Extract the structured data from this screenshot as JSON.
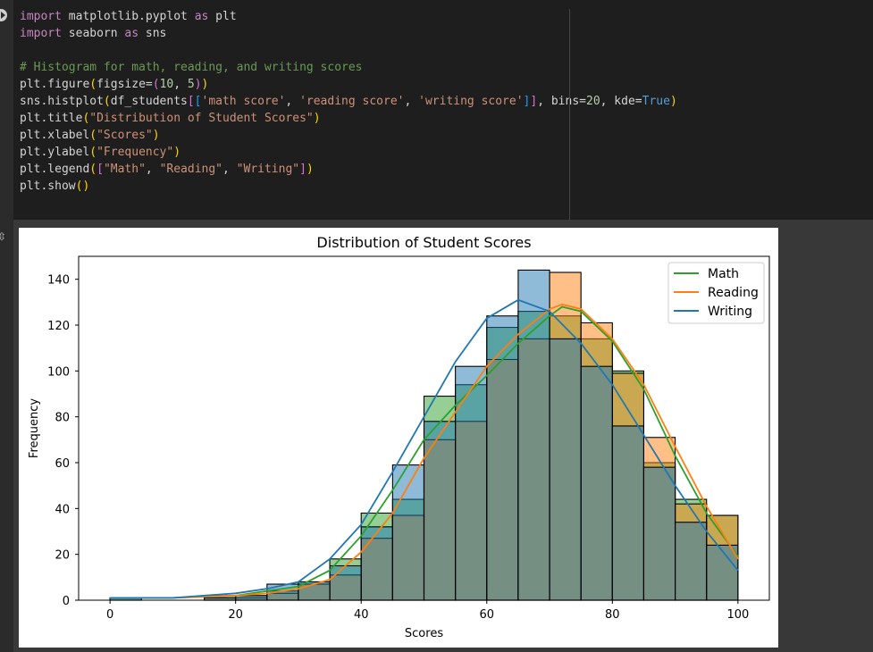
{
  "code_cell": {
    "lines": [
      [
        {
          "t": "import",
          "c": "kw"
        },
        {
          "t": " matplotlib.pyplot ",
          "c": ""
        },
        {
          "t": "as",
          "c": "kw"
        },
        {
          "t": " plt",
          "c": ""
        }
      ],
      [
        {
          "t": "import",
          "c": "kw"
        },
        {
          "t": " seaborn ",
          "c": ""
        },
        {
          "t": "as",
          "c": "kw"
        },
        {
          "t": " sns",
          "c": ""
        }
      ],
      [],
      [
        {
          "t": "# Histogram for math, reading, and writing scores",
          "c": "cm"
        }
      ],
      [
        {
          "t": "plt.figure",
          "c": ""
        },
        {
          "t": "(",
          "c": "br"
        },
        {
          "t": "figsize=",
          "c": ""
        },
        {
          "t": "(",
          "c": "br2"
        },
        {
          "t": "10",
          "c": "nm"
        },
        {
          "t": ", ",
          "c": ""
        },
        {
          "t": "5",
          "c": "nm"
        },
        {
          "t": ")",
          "c": "br2"
        },
        {
          "t": ")",
          "c": "br"
        }
      ],
      [
        {
          "t": "sns.histplot",
          "c": ""
        },
        {
          "t": "(",
          "c": "br"
        },
        {
          "t": "df_students",
          "c": ""
        },
        {
          "t": "[",
          "c": "br2"
        },
        {
          "t": "[",
          "c": "br3"
        },
        {
          "t": "'math score'",
          "c": "st"
        },
        {
          "t": ", ",
          "c": ""
        },
        {
          "t": "'reading score'",
          "c": "st"
        },
        {
          "t": ", ",
          "c": ""
        },
        {
          "t": "'writing score'",
          "c": "st"
        },
        {
          "t": "]",
          "c": "br3"
        },
        {
          "t": "]",
          "c": "br2"
        },
        {
          "t": ", bins=",
          "c": ""
        },
        {
          "t": "20",
          "c": "nm"
        },
        {
          "t": ", kde=",
          "c": ""
        },
        {
          "t": "True",
          "c": "bl"
        },
        {
          "t": ")",
          "c": "br"
        }
      ],
      [
        {
          "t": "plt.title",
          "c": ""
        },
        {
          "t": "(",
          "c": "br"
        },
        {
          "t": "\"Distribution of Student Scores\"",
          "c": "st"
        },
        {
          "t": ")",
          "c": "br"
        }
      ],
      [
        {
          "t": "plt.xlabel",
          "c": ""
        },
        {
          "t": "(",
          "c": "br"
        },
        {
          "t": "\"Scores\"",
          "c": "st"
        },
        {
          "t": ")",
          "c": "br"
        }
      ],
      [
        {
          "t": "plt.ylabel",
          "c": ""
        },
        {
          "t": "(",
          "c": "br"
        },
        {
          "t": "\"Frequency\"",
          "c": "st"
        },
        {
          "t": ")",
          "c": "br"
        }
      ],
      [
        {
          "t": "plt.legend",
          "c": ""
        },
        {
          "t": "(",
          "c": "br"
        },
        {
          "t": "[",
          "c": "br2"
        },
        {
          "t": "\"Math\"",
          "c": "st"
        },
        {
          "t": ", ",
          "c": ""
        },
        {
          "t": "\"Reading\"",
          "c": "st"
        },
        {
          "t": ", ",
          "c": ""
        },
        {
          "t": "\"Writing\"",
          "c": "st"
        },
        {
          "t": "]",
          "c": "br2"
        },
        {
          "t": ")",
          "c": "br"
        }
      ],
      [
        {
          "t": "plt.show",
          "c": ""
        },
        {
          "t": "(",
          "c": "br"
        },
        {
          "t": ")",
          "c": "br"
        }
      ]
    ]
  },
  "chart_data": {
    "type": "bar",
    "title": "Distribution of Student Scores",
    "xlabel": "Scores",
    "ylabel": "Frequency",
    "xlim": [
      -5,
      105
    ],
    "ylim": [
      0,
      150
    ],
    "xticks": [
      0,
      20,
      40,
      60,
      80,
      100
    ],
    "yticks": [
      0,
      20,
      40,
      60,
      80,
      100,
      120,
      140
    ],
    "grid": false,
    "legend_position": "top-right",
    "bin_edges": [
      0,
      5,
      10,
      15,
      20,
      25,
      30,
      35,
      40,
      45,
      50,
      55,
      60,
      65,
      70,
      75,
      80,
      85,
      90,
      95,
      100
    ],
    "series": [
      {
        "name": "Math",
        "color": "#2ca02c",
        "counts": [
          1,
          0,
          0,
          2,
          2,
          4,
          8,
          18,
          38,
          44,
          89,
          94,
          119,
          126,
          124,
          114,
          100,
          60,
          44,
          37
        ],
        "kde": [
          [
            0,
            1
          ],
          [
            10,
            1
          ],
          [
            20,
            2
          ],
          [
            25,
            4
          ],
          [
            30,
            6
          ],
          [
            35,
            13
          ],
          [
            40,
            28
          ],
          [
            45,
            48
          ],
          [
            50,
            70
          ],
          [
            55,
            85
          ],
          [
            60,
            98
          ],
          [
            65,
            112
          ],
          [
            70,
            124
          ],
          [
            72,
            128
          ],
          [
            75,
            126
          ],
          [
            80,
            113
          ],
          [
            85,
            92
          ],
          [
            90,
            63
          ],
          [
            95,
            38
          ],
          [
            100,
            19
          ]
        ]
      },
      {
        "name": "Reading",
        "color": "#ff7f0e",
        "counts": [
          0,
          0,
          0,
          1,
          1,
          3,
          7,
          11,
          27,
          37,
          70,
          78,
          105,
          114,
          143,
          121,
          99,
          71,
          42,
          37
        ],
        "kde": [
          [
            0,
            1
          ],
          [
            10,
            1
          ],
          [
            20,
            2
          ],
          [
            25,
            3
          ],
          [
            30,
            5
          ],
          [
            35,
            9
          ],
          [
            40,
            21
          ],
          [
            45,
            38
          ],
          [
            50,
            62
          ],
          [
            55,
            82
          ],
          [
            60,
            102
          ],
          [
            65,
            116
          ],
          [
            70,
            127
          ],
          [
            72,
            129
          ],
          [
            75,
            127
          ],
          [
            80,
            114
          ],
          [
            85,
            94
          ],
          [
            90,
            67
          ],
          [
            95,
            41
          ],
          [
            100,
            18
          ]
        ]
      },
      {
        "name": "Writing",
        "color": "#1f77b4",
        "counts": [
          1,
          0,
          0,
          1,
          2,
          7,
          8,
          15,
          32,
          59,
          78,
          102,
          124,
          144,
          114,
          102,
          76,
          58,
          34,
          24
        ],
        "kde": [
          [
            0,
            1
          ],
          [
            10,
            1
          ],
          [
            20,
            3
          ],
          [
            25,
            5
          ],
          [
            30,
            8
          ],
          [
            35,
            18
          ],
          [
            40,
            33
          ],
          [
            45,
            56
          ],
          [
            50,
            80
          ],
          [
            55,
            104
          ],
          [
            60,
            123
          ],
          [
            65,
            131
          ],
          [
            70,
            126
          ],
          [
            75,
            112
          ],
          [
            80,
            94
          ],
          [
            85,
            72
          ],
          [
            90,
            50
          ],
          [
            95,
            30
          ],
          [
            100,
            13
          ]
        ]
      }
    ]
  }
}
